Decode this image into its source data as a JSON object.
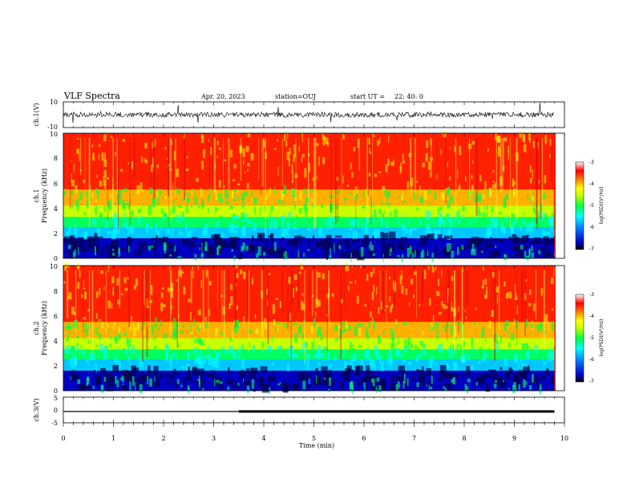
{
  "header": {
    "title": "VLF Spectra",
    "date": "Apr. 20, 2023",
    "station": "station=OUJ",
    "start_label": "start UT =",
    "start_time": "22: 40: 0"
  },
  "colorbar": {
    "label": "log(PSD)(V²/Hz)",
    "ticks": [
      "-3",
      "-4",
      "-5",
      "-6",
      "-7"
    ],
    "range": [
      -7,
      -3
    ],
    "colors": [
      "#000000",
      "#0000c8",
      "#0080ff",
      "#00ffff",
      "#00ff40",
      "#c8ff00",
      "#ffff00",
      "#ff8000",
      "#ff0000",
      "#ffffff"
    ]
  },
  "chart_data": [
    {
      "type": "line",
      "panel": "ch1-waveform",
      "ylabel": "ch.1(V)",
      "ylim": [
        -10,
        10
      ],
      "yticks": [
        "10",
        "-10"
      ],
      "x": [
        0,
        9.8
      ],
      "baseline": 0,
      "color": "#000000"
    },
    {
      "type": "heatmap",
      "panel": "ch1-spectrogram",
      "ylabel_line1": "ch.1",
      "ylabel_line2": "Frequency (kHz)",
      "ylim": [
        0,
        10
      ],
      "yticks": [
        "0",
        "2",
        "4",
        "6",
        "8",
        "10"
      ],
      "xlim": [
        0,
        9.8
      ],
      "color_range": [
        -7,
        -3
      ]
    },
    {
      "type": "heatmap",
      "panel": "ch2-spectrogram",
      "ylabel_line1": "ch.2",
      "ylabel_line2": "Frequency (kHz)",
      "ylim": [
        0,
        10
      ],
      "yticks": [
        "0",
        "2",
        "4",
        "6",
        "8",
        "10"
      ],
      "xlim": [
        0,
        9.8
      ],
      "color_range": [
        -7,
        -3
      ]
    },
    {
      "type": "line",
      "panel": "ch3-voltage",
      "ylabel": "ch.3(V)",
      "ylim": [
        -5,
        5
      ],
      "yticks": [
        "5",
        "0",
        "-5"
      ],
      "x": [
        0,
        3.5,
        3.5,
        9.8
      ],
      "y": [
        -0.6,
        -0.6,
        -0.6,
        -0.6
      ],
      "color": "#000000"
    }
  ],
  "xaxis": {
    "label": "Time (min)",
    "ticks": [
      "0",
      "1",
      "2",
      "3",
      "4",
      "5",
      "6",
      "7",
      "8",
      "9",
      "10"
    ],
    "xlim": [
      0,
      10
    ]
  }
}
